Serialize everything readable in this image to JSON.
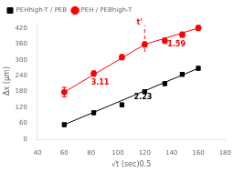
{
  "chart_data": {
    "type": "scatter",
    "xlabel": "√t (sec)0.5",
    "ylabel": "Δx (μm)",
    "xlim": [
      40,
      180
    ],
    "ylim": [
      0,
      440
    ],
    "xticks": [
      40,
      60,
      80,
      100,
      120,
      140,
      160,
      180
    ],
    "yticks": [
      0,
      60,
      120,
      180,
      240,
      300,
      360,
      420
    ],
    "grid": false,
    "legend": "upper left",
    "series": [
      {
        "name": "PEHhigh-T / PEB",
        "color": "black",
        "marker": "square",
        "x": [
          60,
          82,
          103,
          120,
          135,
          148,
          160
        ],
        "values": [
          55,
          100,
          130,
          180,
          210,
          245,
          268
        ],
        "yerr": [
          7,
          7,
          7,
          7,
          7,
          7,
          7
        ],
        "fit_lines": [
          {
            "x": [
              60,
              160
            ],
            "values": [
              55,
              268
            ]
          }
        ]
      },
      {
        "name": "PEH / PEBhigh-T",
        "color": "red",
        "marker": "circle",
        "x": [
          60,
          82,
          103,
          120,
          135,
          148,
          160
        ],
        "values": [
          178,
          248,
          310,
          358,
          372,
          395,
          420
        ],
        "yerr": [
          18,
          10,
          10,
          10,
          10,
          10,
          10
        ],
        "fit_lines": [
          {
            "x": [
              60,
              120
            ],
            "values": [
              178,
              358
            ]
          },
          {
            "x": [
              120,
              160
            ],
            "values": [
              358,
              420
            ]
          }
        ]
      }
    ],
    "lines": [
      {
        "x": [
          120,
          120
        ],
        "values": [
          330,
          430
        ],
        "color": "red",
        "line_style": "dashed"
      }
    ],
    "annotations": [
      {
        "text": "3.11",
        "x": 80,
        "y": 205,
        "color": "red"
      },
      {
        "text": "1.59",
        "x": 137,
        "y": 352,
        "color": "red"
      },
      {
        "text": "2.23",
        "x": 112,
        "y": 152,
        "color": "black"
      },
      {
        "text": "t'",
        "x": 114,
        "y": 432,
        "color": "red"
      }
    ]
  }
}
